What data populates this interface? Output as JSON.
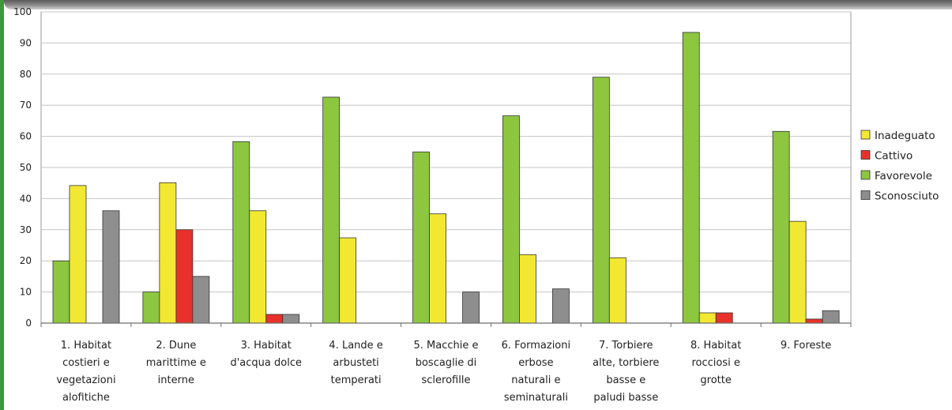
{
  "chart_data": {
    "type": "bar",
    "title": "",
    "xlabel": "",
    "ylabel": "",
    "ylim": [
      0,
      100
    ],
    "yticks": [
      0,
      10,
      20,
      30,
      40,
      50,
      60,
      70,
      80,
      90,
      100
    ],
    "grid": true,
    "legend_position": "right",
    "categories": [
      [
        "1. Habitat",
        "costieri e",
        "vegetazioni",
        "alofitiche"
      ],
      [
        "2. Dune",
        "marittime e",
        "interne"
      ],
      [
        "3. Habitat",
        "d'acqua dolce"
      ],
      [
        "4. Lande e",
        "arbusteti",
        "temperati"
      ],
      [
        "5. Macchie e",
        "boscaglie di",
        "sclerofille"
      ],
      [
        "6. Formazioni",
        "erbose",
        "naturali e",
        "seminaturali"
      ],
      [
        "7. Torbiere",
        "alte, torbiere",
        "basse e",
        "paludi basse"
      ],
      [
        "8. Habitat",
        "rocciosi e",
        "grotte"
      ],
      [
        "9. Foreste"
      ]
    ],
    "series": [
      {
        "name": "Favorevole",
        "color": "#8dc63f",
        "values": [
          20,
          10,
          58.3,
          72.6,
          55,
          66.6,
          79,
          93.4,
          61.6
        ]
      },
      {
        "name": "Inadeguato",
        "color": "#f2e832",
        "values": [
          44.2,
          45.1,
          36.1,
          27.4,
          35.1,
          22,
          21,
          3.3,
          32.7
        ]
      },
      {
        "name": "Cattivo",
        "color": "#e8312a",
        "values": [
          0,
          30,
          2.8,
          0,
          0,
          0,
          0,
          3.3,
          1.3
        ]
      },
      {
        "name": "Sconosciuto",
        "color": "#8e8e8e",
        "values": [
          36.1,
          15,
          2.8,
          0,
          10,
          11,
          0,
          0,
          4
        ]
      }
    ],
    "legend_order": [
      "Inadeguato",
      "Cattivo",
      "Favorevole",
      "Sconosciuto"
    ]
  }
}
